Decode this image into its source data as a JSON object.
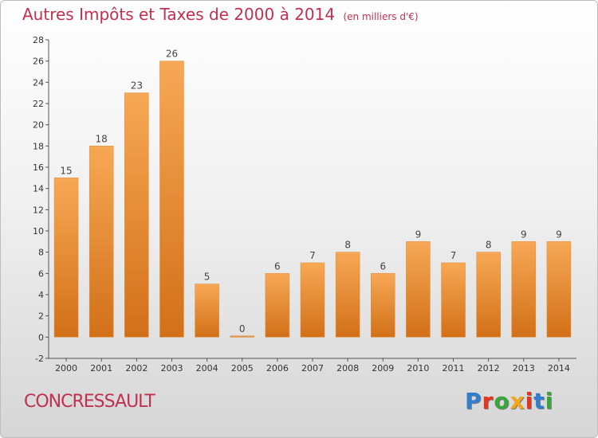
{
  "header": {
    "title": "Autres Impôts et Taxes de 2000 à 2014",
    "unit": "(en milliers d'€)"
  },
  "footer": {
    "commune": "CONCRESSAULT",
    "logo": "Proxiti",
    "logo_colors": [
      "#2f7fd0",
      "#e8341c",
      "#3aa53a",
      "#f2a71b",
      "#e8341c",
      "#2f7fd0",
      "#3aa53a"
    ]
  },
  "colors": {
    "title": "#c0304f",
    "bar_light": "#f7a855",
    "bar_dark": "#d27018",
    "axis": "#555555"
  },
  "chart_data": {
    "type": "bar",
    "title": "Autres Impôts et Taxes de 2000 à 2014",
    "subtitle": "(en milliers d'€)",
    "categories": [
      "2000",
      "2001",
      "2002",
      "2003",
      "2004",
      "2005",
      "2006",
      "2007",
      "2008",
      "2009",
      "2010",
      "2011",
      "2012",
      "2013",
      "2014"
    ],
    "values": [
      15,
      18,
      23,
      26,
      5,
      0,
      6,
      7,
      8,
      6,
      9,
      7,
      8,
      9,
      9
    ],
    "xlabel": "",
    "ylabel": "",
    "ylim": [
      -2,
      28
    ],
    "yticks": [
      -2,
      0,
      2,
      4,
      6,
      8,
      10,
      12,
      14,
      16,
      18,
      20,
      22,
      24,
      26,
      28
    ],
    "grid": false,
    "legend": "none"
  }
}
